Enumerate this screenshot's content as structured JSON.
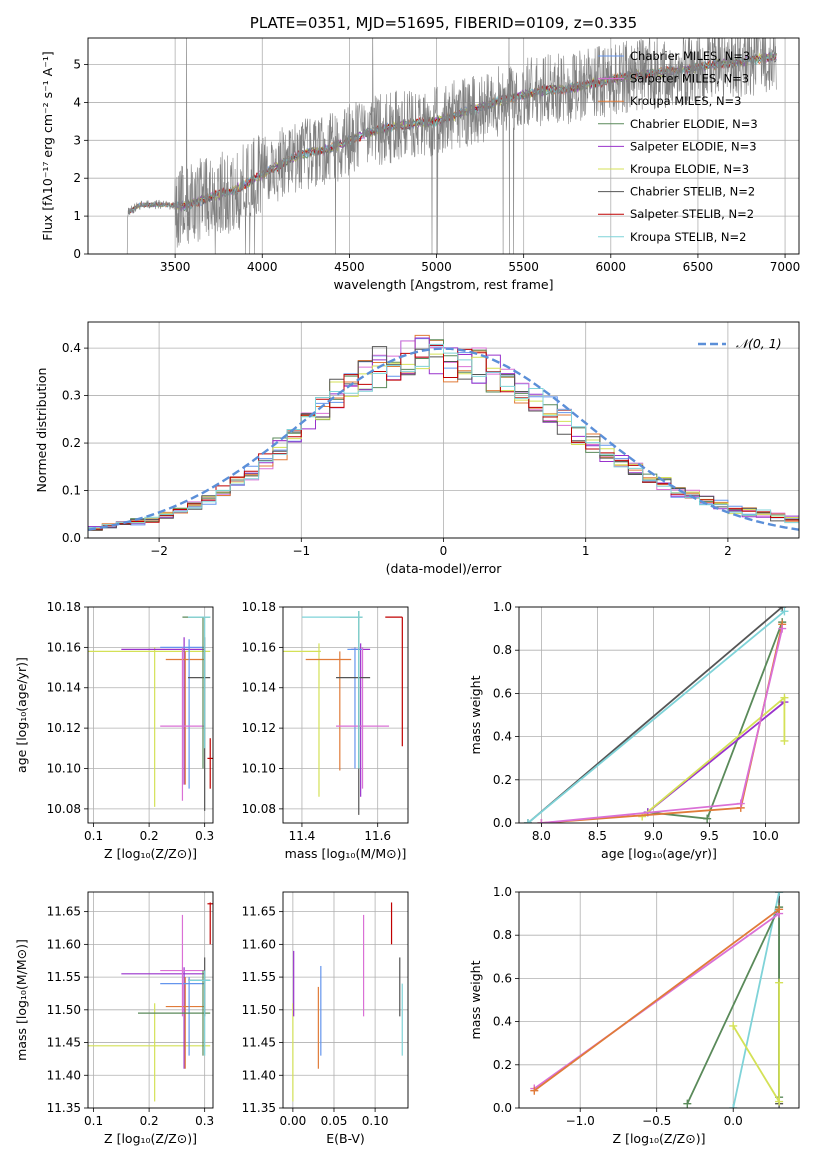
{
  "chart_data": [
    {
      "id": "spectrum",
      "type": "line",
      "title": "PLATE=0351, MJD=51695, FIBERID=0109, z=0.335",
      "xlabel": "wavelength [Angstrom, rest frame]",
      "ylabel": "Flux [fλ10⁻¹⁷ erg cm⁻² s⁻¹ A⁻¹]",
      "xlim": [
        3000,
        7080
      ],
      "ylim": [
        0,
        5.7
      ],
      "xticks": [
        3500,
        4000,
        4500,
        5000,
        5500,
        6000,
        6500,
        7000
      ],
      "yticks": [
        0,
        1,
        2,
        3,
        4,
        5
      ],
      "legend_position": "upper-right",
      "data_trend": {
        "x": [
          3230,
          3300,
          3450,
          3550,
          3700,
          3850,
          4000,
          4200,
          4400,
          4600,
          4800,
          5000,
          5200,
          5400,
          5600,
          5800,
          6000,
          6200,
          6400,
          6600,
          6800,
          6900
        ],
        "y": [
          1.1,
          1.3,
          1.3,
          1.25,
          1.5,
          1.7,
          2.1,
          2.6,
          2.8,
          3.2,
          3.4,
          3.5,
          3.8,
          4.1,
          4.3,
          4.4,
          4.6,
          4.75,
          4.85,
          5.0,
          5.1,
          5.2
        ]
      },
      "series": [
        {
          "name": "Chabrier MILES, N_SSP=3",
          "color": "#6495ed"
        },
        {
          "name": "Salpeter MILES, N_SSP=3",
          "color": "#da70d6"
        },
        {
          "name": "Kroupa MILES, N_SSP=3",
          "color": "#e07b39"
        },
        {
          "name": "Chabrier ELODIE, N_SSP=3",
          "color": "#5a8a5a"
        },
        {
          "name": "Salpeter ELODIE, N_SSP=3",
          "color": "#9932cc"
        },
        {
          "name": "Kroupa ELODIE, N_SSP=3",
          "color": "#d4e157"
        },
        {
          "name": "Chabrier STELIB, N_SSP=2",
          "color": "#555555"
        },
        {
          "name": "Salpeter STELIB, N_SSP=2",
          "color": "#c00000"
        },
        {
          "name": "Kroupa STELIB, N_SSP=2",
          "color": "#7fd3d8"
        }
      ]
    },
    {
      "id": "residuals",
      "type": "line",
      "xlabel": "(data-model)/error",
      "ylabel": "Normed distribution",
      "xlim": [
        -2.5,
        2.5
      ],
      "ylim": [
        0,
        0.455
      ],
      "xticks": [
        -2,
        -1,
        0,
        1,
        2
      ],
      "yticks": [
        0.0,
        0.1,
        0.2,
        0.3,
        0.4
      ],
      "legend": "𝒩(0, 1)",
      "legend_position": "top-right",
      "histogram_base": [
        0.022,
        0.024,
        0.03,
        0.035,
        0.04,
        0.05,
        0.058,
        0.07,
        0.085,
        0.1,
        0.122,
        0.14,
        0.165,
        0.19,
        0.22,
        0.25,
        0.27,
        0.3,
        0.32,
        0.34,
        0.36,
        0.37,
        0.38,
        0.385,
        0.38,
        0.375,
        0.37,
        0.36,
        0.35,
        0.33,
        0.31,
        0.29,
        0.27,
        0.25,
        0.22,
        0.2,
        0.18,
        0.165,
        0.15,
        0.13,
        0.115,
        0.1,
        0.09,
        0.08,
        0.07,
        0.06,
        0.055,
        0.05,
        0.045,
        0.04
      ]
    },
    {
      "id": "age-vs-z",
      "type": "scatter",
      "xlabel": "Z [log₁₀(Z/Z⊙)]",
      "ylabel": "age  [log₁₀(age/yr)]",
      "xlim": [
        0.09,
        0.315
      ],
      "ylim": [
        10.073,
        10.18
      ],
      "xticks": [
        0.1,
        0.2,
        0.3
      ],
      "yticks": [
        10.08,
        10.1,
        10.12,
        10.14,
        10.16,
        10.18
      ],
      "points": [
        {
          "x": 0.21,
          "y": 10.158,
          "xerr": [
            0.09,
            0.31
          ],
          "yerr": [
            10.081,
            10.16
          ],
          "color": "#d4e157"
        },
        {
          "x": 0.263,
          "y": 10.159,
          "xerr": [
            0.15,
            0.3
          ],
          "yerr": [
            10.092,
            10.165
          ],
          "color": "#9932cc"
        },
        {
          "x": 0.265,
          "y": 10.154,
          "xerr": [
            0.23,
            0.3
          ],
          "yerr": [
            10.092,
            10.158
          ],
          "color": "#e07b39"
        },
        {
          "x": 0.272,
          "y": 10.16,
          "xerr": [
            0.22,
            0.3
          ],
          "yerr": [
            10.09,
            10.164
          ],
          "color": "#6495ed"
        },
        {
          "x": 0.26,
          "y": 10.121,
          "xerr": [
            0.22,
            0.3
          ],
          "yerr": [
            10.084,
            10.16
          ],
          "color": "#da70d6"
        },
        {
          "x": 0.3,
          "y": 10.145,
          "xerr": [
            0.27,
            0.31
          ],
          "yerr": [
            10.079,
            10.165
          ],
          "color": "#555555"
        },
        {
          "x": 0.297,
          "y": 10.175,
          "xerr": [
            0.26,
            0.31
          ],
          "yerr": [
            10.1,
            10.175
          ],
          "color": "#5a8a5a"
        },
        {
          "x": 0.3,
          "y": 10.175,
          "xerr": [
            0.27,
            0.31
          ],
          "yerr": [
            10.11,
            10.175
          ],
          "color": "#7fd3d8"
        },
        {
          "x": 0.31,
          "y": 10.105,
          "xerr": [
            0.305,
            0.315
          ],
          "yerr": [
            10.09,
            10.115
          ],
          "color": "#c00000"
        }
      ]
    },
    {
      "id": "age-vs-mass",
      "type": "scatter",
      "xlabel": "mass [log₁₀(M/M⊙)]",
      "xlim": [
        11.35,
        11.68
      ],
      "ylim": [
        10.073,
        10.18
      ],
      "xticks": [
        11.4,
        11.6
      ],
      "yticks": [
        10.08,
        10.1,
        10.12,
        10.14,
        10.16,
        10.18
      ],
      "points": [
        {
          "x": 11.445,
          "y": 10.158,
          "xerr": [
            11.35,
            11.45
          ],
          "yerr": [
            10.086,
            10.162
          ],
          "color": "#d4e157"
        },
        {
          "x": 11.555,
          "y": 10.159,
          "xerr": [
            11.53,
            11.58
          ],
          "yerr": [
            10.086,
            10.162
          ],
          "color": "#9932cc"
        },
        {
          "x": 11.5,
          "y": 10.154,
          "xerr": [
            11.41,
            11.53
          ],
          "yerr": [
            10.099,
            10.158
          ],
          "color": "#e07b39"
        },
        {
          "x": 11.54,
          "y": 10.159,
          "xerr": [
            11.52,
            11.56
          ],
          "yerr": [
            10.1,
            10.16
          ],
          "color": "#6495ed"
        },
        {
          "x": 11.56,
          "y": 10.121,
          "xerr": [
            11.49,
            11.63
          ],
          "yerr": [
            10.09,
            10.16
          ],
          "color": "#da70d6"
        },
        {
          "x": 11.55,
          "y": 10.145,
          "xerr": [
            11.49,
            11.58
          ],
          "yerr": [
            10.077,
            10.145
          ],
          "color": "#555555"
        },
        {
          "x": 11.55,
          "y": 10.175,
          "xerr": [
            11.5,
            11.56
          ],
          "yerr": [
            10.1,
            10.178
          ],
          "color": "#5a8a5a"
        },
        {
          "x": 11.55,
          "y": 10.175,
          "xerr": [
            11.4,
            11.56
          ],
          "yerr": [
            10.1,
            10.178
          ],
          "color": "#7fd3d8"
        },
        {
          "x": 11.665,
          "y": 10.175,
          "xerr": [
            11.62,
            11.665
          ],
          "yerr": [
            10.111,
            10.175
          ],
          "color": "#c00000"
        }
      ]
    },
    {
      "id": "weight-vs-age",
      "type": "line",
      "xlabel": "age  [log₁₀(age/yr)]",
      "ylabel": "mass weight",
      "xlim": [
        7.8,
        10.3
      ],
      "ylim": [
        0,
        1.0
      ],
      "xticks": [
        8.0,
        8.5,
        9.0,
        9.5,
        10.0
      ],
      "yticks": [
        0.0,
        0.2,
        0.4,
        0.6,
        0.8,
        1.0
      ],
      "series_points": [
        {
          "color": "#555555",
          "x": [
            7.88,
            10.15
          ],
          "y": [
            0.0,
            1.0
          ]
        },
        {
          "color": "#7fd3d8",
          "x": [
            7.88,
            10.17
          ],
          "y": [
            0.0,
            0.98
          ]
        },
        {
          "color": "#5a8a5a",
          "x": [
            8.95,
            9.48,
            10.15
          ],
          "y": [
            0.05,
            0.02,
            0.93
          ]
        },
        {
          "color": "#9932cc",
          "x": [
            8.95,
            10.17
          ],
          "y": [
            0.05,
            0.56
          ]
        },
        {
          "color": "#d4e157",
          "x": [
            8.9,
            10.17,
            10.17
          ],
          "y": [
            0.03,
            0.58,
            0.38
          ]
        },
        {
          "color": "#e07b39",
          "x": [
            8.0,
            9.78,
            10.15
          ],
          "y": [
            0.0,
            0.07,
            0.92
          ]
        },
        {
          "color": "#da70d6",
          "x": [
            8.0,
            9.78,
            10.15
          ],
          "y": [
            0.0,
            0.09,
            0.9
          ]
        }
      ]
    },
    {
      "id": "mass-vs-z",
      "type": "scatter",
      "xlabel": "Z [log₁₀(Z/Z⊙)]",
      "ylabel": "mass [log₁₀(M/M⊙)]",
      "xlim": [
        0.09,
        0.315
      ],
      "ylim": [
        11.35,
        11.68
      ],
      "xticks": [
        0.1,
        0.2,
        0.3
      ],
      "yticks": [
        11.35,
        11.4,
        11.45,
        11.5,
        11.55,
        11.6,
        11.65
      ],
      "points": [
        {
          "x": 0.21,
          "y": 11.445,
          "xerr": [
            0.09,
            0.31
          ],
          "yerr": [
            11.36,
            11.51
          ],
          "color": "#d4e157"
        },
        {
          "x": 0.263,
          "y": 11.555,
          "xerr": [
            0.15,
            0.3
          ],
          "yerr": [
            11.41,
            11.565
          ],
          "color": "#9932cc"
        },
        {
          "x": 0.265,
          "y": 11.505,
          "xerr": [
            0.23,
            0.3
          ],
          "yerr": [
            11.41,
            11.55
          ],
          "color": "#e07b39"
        },
        {
          "x": 0.272,
          "y": 11.54,
          "xerr": [
            0.22,
            0.3
          ],
          "yerr": [
            11.43,
            11.55
          ],
          "color": "#6495ed"
        },
        {
          "x": 0.26,
          "y": 11.56,
          "xerr": [
            0.22,
            0.3
          ],
          "yerr": [
            11.49,
            11.645
          ],
          "color": "#da70d6"
        },
        {
          "x": 0.3,
          "y": 11.545,
          "xerr": [
            0.27,
            0.31
          ],
          "yerr": [
            11.49,
            11.58
          ],
          "color": "#555555"
        },
        {
          "x": 0.297,
          "y": 11.495,
          "xerr": [
            0.18,
            0.31
          ],
          "yerr": [
            11.43,
            11.56
          ],
          "color": "#5a8a5a"
        },
        {
          "x": 0.3,
          "y": 11.545,
          "xerr": [
            0.27,
            0.31
          ],
          "yerr": [
            11.43,
            11.56
          ],
          "color": "#7fd3d8"
        },
        {
          "x": 0.31,
          "y": 11.662,
          "xerr": [
            0.305,
            0.315
          ],
          "yerr": [
            11.6,
            11.664
          ],
          "color": "#c00000"
        }
      ]
    },
    {
      "id": "mass-vs-ebv",
      "type": "scatter",
      "xlabel": "E(B-V)",
      "xlim": [
        -0.012,
        0.14
      ],
      "ylim": [
        11.35,
        11.68
      ],
      "xticks": [
        0.0,
        0.05,
        0.1
      ],
      "yticks": [
        11.35,
        11.4,
        11.45,
        11.5,
        11.55,
        11.6,
        11.65
      ],
      "points": [
        {
          "x": 0.0,
          "y": 11.46,
          "xerr": [
            0.0,
            0.0
          ],
          "yerr": [
            11.36,
            11.51
          ],
          "color": "#d4e157"
        },
        {
          "x": 0.001,
          "y": 11.56,
          "xerr": [
            0.001,
            0.001
          ],
          "yerr": [
            11.49,
            11.59
          ],
          "color": "#9932cc"
        },
        {
          "x": 0.031,
          "y": 11.47,
          "xerr": [
            0.031,
            0.031
          ],
          "yerr": [
            11.41,
            11.535
          ],
          "color": "#e07b39"
        },
        {
          "x": 0.034,
          "y": 11.5,
          "xerr": [
            0.034,
            0.034
          ],
          "yerr": [
            11.43,
            11.567
          ],
          "color": "#6495ed"
        },
        {
          "x": 0.086,
          "y": 11.57,
          "xerr": [
            0.086,
            0.086
          ],
          "yerr": [
            11.49,
            11.645
          ],
          "color": "#da70d6"
        },
        {
          "x": 0.12,
          "y": 11.63,
          "xerr": [
            0.12,
            0.12
          ],
          "yerr": [
            11.6,
            11.664
          ],
          "color": "#c00000"
        },
        {
          "x": 0.13,
          "y": 11.53,
          "xerr": [
            0.13,
            0.13
          ],
          "yerr": [
            11.49,
            11.58
          ],
          "color": "#555555"
        },
        {
          "x": 0.133,
          "y": 11.48,
          "xerr": [
            0.133,
            0.133
          ],
          "yerr": [
            11.43,
            11.54
          ],
          "color": "#7fd3d8"
        }
      ]
    },
    {
      "id": "weight-vs-z",
      "type": "line",
      "xlabel": "Z [log₁₀(Z/Z⊙)]",
      "ylabel": "mass weight",
      "xlim": [
        -1.4,
        0.43
      ],
      "ylim": [
        0,
        1.0
      ],
      "xticks": [
        -1.0,
        -0.5,
        0.0
      ],
      "yticks": [
        0.0,
        0.2,
        0.4,
        0.6,
        0.8,
        1.0
      ],
      "series_points": [
        {
          "color": "#555555",
          "x": [
            0.3,
            0.3
          ],
          "y": [
            0.02,
            1.0
          ]
        },
        {
          "color": "#7fd3d8",
          "x": [
            0.0,
            0.3
          ],
          "y": [
            0.0,
            1.0
          ]
        },
        {
          "color": "#5a8a5a",
          "x": [
            -0.3,
            0.3,
            0.3
          ],
          "y": [
            0.02,
            0.93,
            0.05
          ]
        },
        {
          "color": "#d4e157",
          "x": [
            0.0,
            0.3,
            0.3
          ],
          "y": [
            0.38,
            0.03,
            0.58
          ]
        },
        {
          "color": "#da70d6",
          "x": [
            -1.3,
            0.3
          ],
          "y": [
            0.09,
            0.9
          ]
        },
        {
          "color": "#e07b39",
          "x": [
            -1.3,
            0.3
          ],
          "y": [
            0.08,
            0.92
          ]
        }
      ]
    }
  ]
}
